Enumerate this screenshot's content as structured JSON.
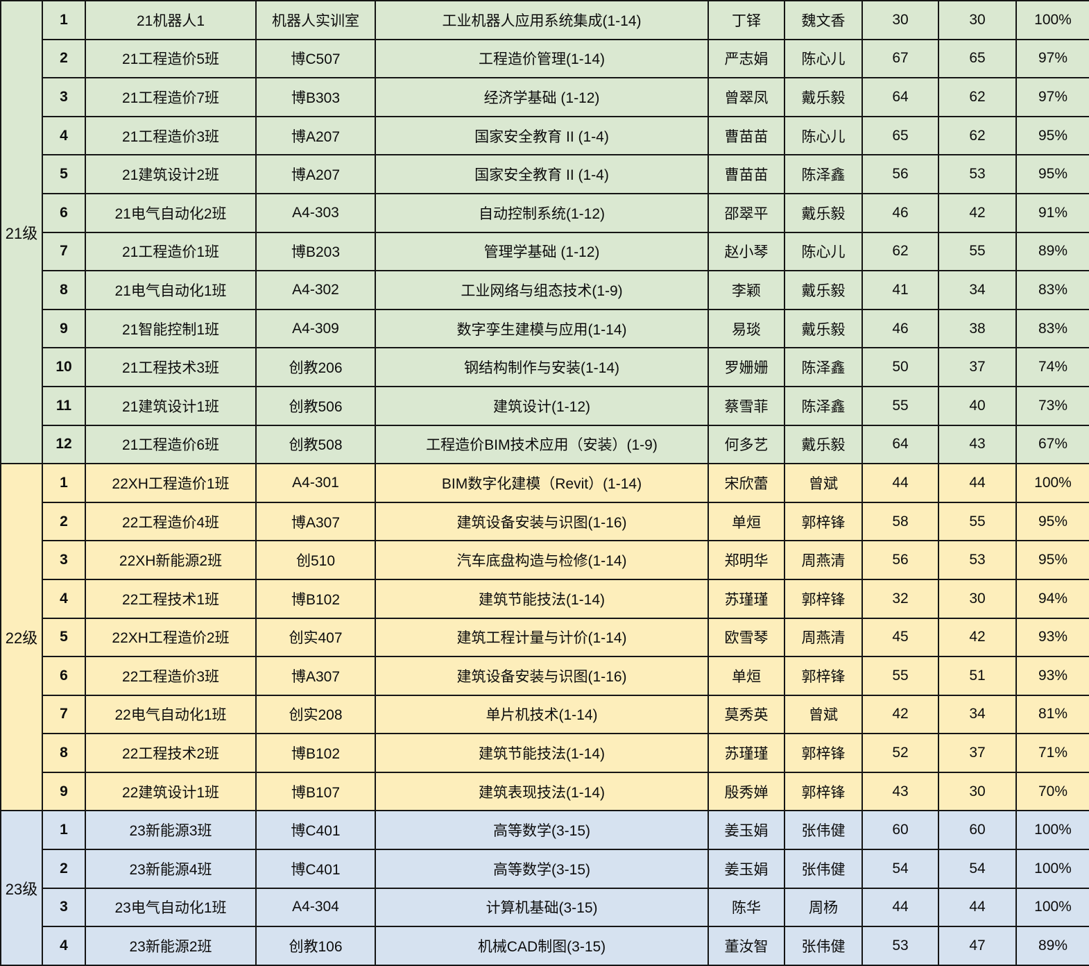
{
  "table": {
    "groups": [
      {
        "label": "21级",
        "bg": "#dae8d1",
        "rows": [
          {
            "no": "1",
            "class_name": "21机器人1",
            "room": "机器人实训室",
            "course": "工业机器人应用系统集成(1-14)",
            "teacher": "丁铎",
            "head_teacher": "魏文香",
            "student_count": "30",
            "attend_count": "30",
            "attendance_rate": "100%"
          },
          {
            "no": "2",
            "class_name": "21工程造价5班",
            "room": "博C507",
            "course": "工程造价管理(1-14)",
            "teacher": "严志娟",
            "head_teacher": "陈心儿",
            "student_count": "67",
            "attend_count": "65",
            "attendance_rate": "97%"
          },
          {
            "no": "3",
            "class_name": "21工程造价7班",
            "room": "博B303",
            "course": "经济学基础 (1-12)",
            "teacher": "曾翠凤",
            "head_teacher": "戴乐毅",
            "student_count": "64",
            "attend_count": "62",
            "attendance_rate": "97%"
          },
          {
            "no": "4",
            "class_name": "21工程造价3班",
            "room": "博A207",
            "course": "国家安全教育 II (1-4)",
            "teacher": "曹苗苗",
            "head_teacher": "陈心儿",
            "student_count": "65",
            "attend_count": "62",
            "attendance_rate": "95%"
          },
          {
            "no": "5",
            "class_name": "21建筑设计2班",
            "room": "博A207",
            "course": "国家安全教育 II (1-4)",
            "teacher": "曹苗苗",
            "head_teacher": "陈泽鑫",
            "student_count": "56",
            "attend_count": "53",
            "attendance_rate": "95%"
          },
          {
            "no": "6",
            "class_name": "21电气自动化2班",
            "room": "A4-303",
            "course": "自动控制系统(1-12)",
            "teacher": "邵翠平",
            "head_teacher": "戴乐毅",
            "student_count": "46",
            "attend_count": "42",
            "attendance_rate": "91%"
          },
          {
            "no": "7",
            "class_name": "21工程造价1班",
            "room": "博B203",
            "course": "管理学基础 (1-12)",
            "teacher": "赵小琴",
            "head_teacher": "陈心儿",
            "student_count": "62",
            "attend_count": "55",
            "attendance_rate": "89%"
          },
          {
            "no": "8",
            "class_name": "21电气自动化1班",
            "room": "A4-302",
            "course": "工业网络与组态技术(1-9)",
            "teacher": "李颖",
            "head_teacher": "戴乐毅",
            "student_count": "41",
            "attend_count": "34",
            "attendance_rate": "83%"
          },
          {
            "no": "9",
            "class_name": "21智能控制1班",
            "room": "A4-309",
            "course": "数字孪生建模与应用(1-14)",
            "teacher": "易琰",
            "head_teacher": "戴乐毅",
            "student_count": "46",
            "attend_count": "38",
            "attendance_rate": "83%"
          },
          {
            "no": "10",
            "class_name": "21工程技术3班",
            "room": "创教206",
            "course": "钢结构制作与安装(1-14)",
            "teacher": "罗姗姗",
            "head_teacher": "陈泽鑫",
            "student_count": "50",
            "attend_count": "37",
            "attendance_rate": "74%"
          },
          {
            "no": "11",
            "class_name": "21建筑设计1班",
            "room": "创教506",
            "course": "建筑设计(1-12)",
            "teacher": "蔡雪菲",
            "head_teacher": "陈泽鑫",
            "student_count": "55",
            "attend_count": "40",
            "attendance_rate": "73%"
          },
          {
            "no": "12",
            "class_name": "21工程造价6班",
            "room": "创教508",
            "course": "工程造价BIM技术应用（安装）(1-9)",
            "teacher": "何多艺",
            "head_teacher": "戴乐毅",
            "student_count": "64",
            "attend_count": "43",
            "attendance_rate": "67%"
          }
        ]
      },
      {
        "label": "22级",
        "bg": "#fdeebb",
        "rows": [
          {
            "no": "1",
            "class_name": "22XH工程造价1班",
            "room": "A4-301",
            "course": "BIM数字化建模（Revit）(1-14)",
            "teacher": "宋欣蕾",
            "head_teacher": "曾斌",
            "student_count": "44",
            "attend_count": "44",
            "attendance_rate": "100%"
          },
          {
            "no": "2",
            "class_name": "22工程造价4班",
            "room": "博A307",
            "course": "建筑设备安装与识图(1-16)",
            "teacher": "单烜",
            "head_teacher": "郭梓锋",
            "student_count": "58",
            "attend_count": "55",
            "attendance_rate": "95%"
          },
          {
            "no": "3",
            "class_name": "22XH新能源2班",
            "room": "创510",
            "course": "汽车底盘构造与检修(1-14)",
            "teacher": "郑明华",
            "head_teacher": "周燕清",
            "student_count": "56",
            "attend_count": "53",
            "attendance_rate": "95%"
          },
          {
            "no": "4",
            "class_name": "22工程技术1班",
            "room": "博B102",
            "course": "建筑节能技法(1-14)",
            "teacher": "苏瑾瑾",
            "head_teacher": "郭梓锋",
            "student_count": "32",
            "attend_count": "30",
            "attendance_rate": "94%"
          },
          {
            "no": "5",
            "class_name": "22XH工程造价2班",
            "room": "创实407",
            "course": "建筑工程计量与计价(1-14)",
            "teacher": "欧雪琴",
            "head_teacher": "周燕清",
            "student_count": "45",
            "attend_count": "42",
            "attendance_rate": "93%"
          },
          {
            "no": "6",
            "class_name": "22工程造价3班",
            "room": "博A307",
            "course": "建筑设备安装与识图(1-16)",
            "teacher": "单烜",
            "head_teacher": "郭梓锋",
            "student_count": "55",
            "attend_count": "51",
            "attendance_rate": "93%"
          },
          {
            "no": "7",
            "class_name": "22电气自动化1班",
            "room": "创实208",
            "course": "单片机技术(1-14)",
            "teacher": "莫秀英",
            "head_teacher": "曾斌",
            "student_count": "42",
            "attend_count": "34",
            "attendance_rate": "81%"
          },
          {
            "no": "8",
            "class_name": "22工程技术2班",
            "room": "博B102",
            "course": "建筑节能技法(1-14)",
            "teacher": "苏瑾瑾",
            "head_teacher": "郭梓锋",
            "student_count": "52",
            "attend_count": "37",
            "attendance_rate": "71%"
          },
          {
            "no": "9",
            "class_name": "22建筑设计1班",
            "room": "博B107",
            "course": "建筑表现技法(1-14)",
            "teacher": "殷秀婵",
            "head_teacher": "郭梓锋",
            "student_count": "43",
            "attend_count": "30",
            "attendance_rate": "70%"
          }
        ]
      },
      {
        "label": "23级",
        "bg": "#d6e2f0",
        "rows": [
          {
            "no": "1",
            "class_name": "23新能源3班",
            "room": "博C401",
            "course": "高等数学(3-15)",
            "teacher": "姜玉娟",
            "head_teacher": "张伟健",
            "student_count": "60",
            "attend_count": "60",
            "attendance_rate": "100%"
          },
          {
            "no": "2",
            "class_name": "23新能源4班",
            "room": "博C401",
            "course": "高等数学(3-15)",
            "teacher": "姜玉娟",
            "head_teacher": "张伟健",
            "student_count": "54",
            "attend_count": "54",
            "attendance_rate": "100%"
          },
          {
            "no": "3",
            "class_name": "23电气自动化1班",
            "room": "A4-304",
            "course": "计算机基础(3-15)",
            "teacher": "陈华",
            "head_teacher": "周杨",
            "student_count": "44",
            "attend_count": "44",
            "attendance_rate": "100%"
          },
          {
            "no": "4",
            "class_name": "23新能源2班",
            "room": "创教106",
            "course": "机械CAD制图(3-15)",
            "teacher": "董汝智",
            "head_teacher": "张伟健",
            "student_count": "53",
            "attend_count": "47",
            "attendance_rate": "89%"
          }
        ]
      }
    ]
  }
}
